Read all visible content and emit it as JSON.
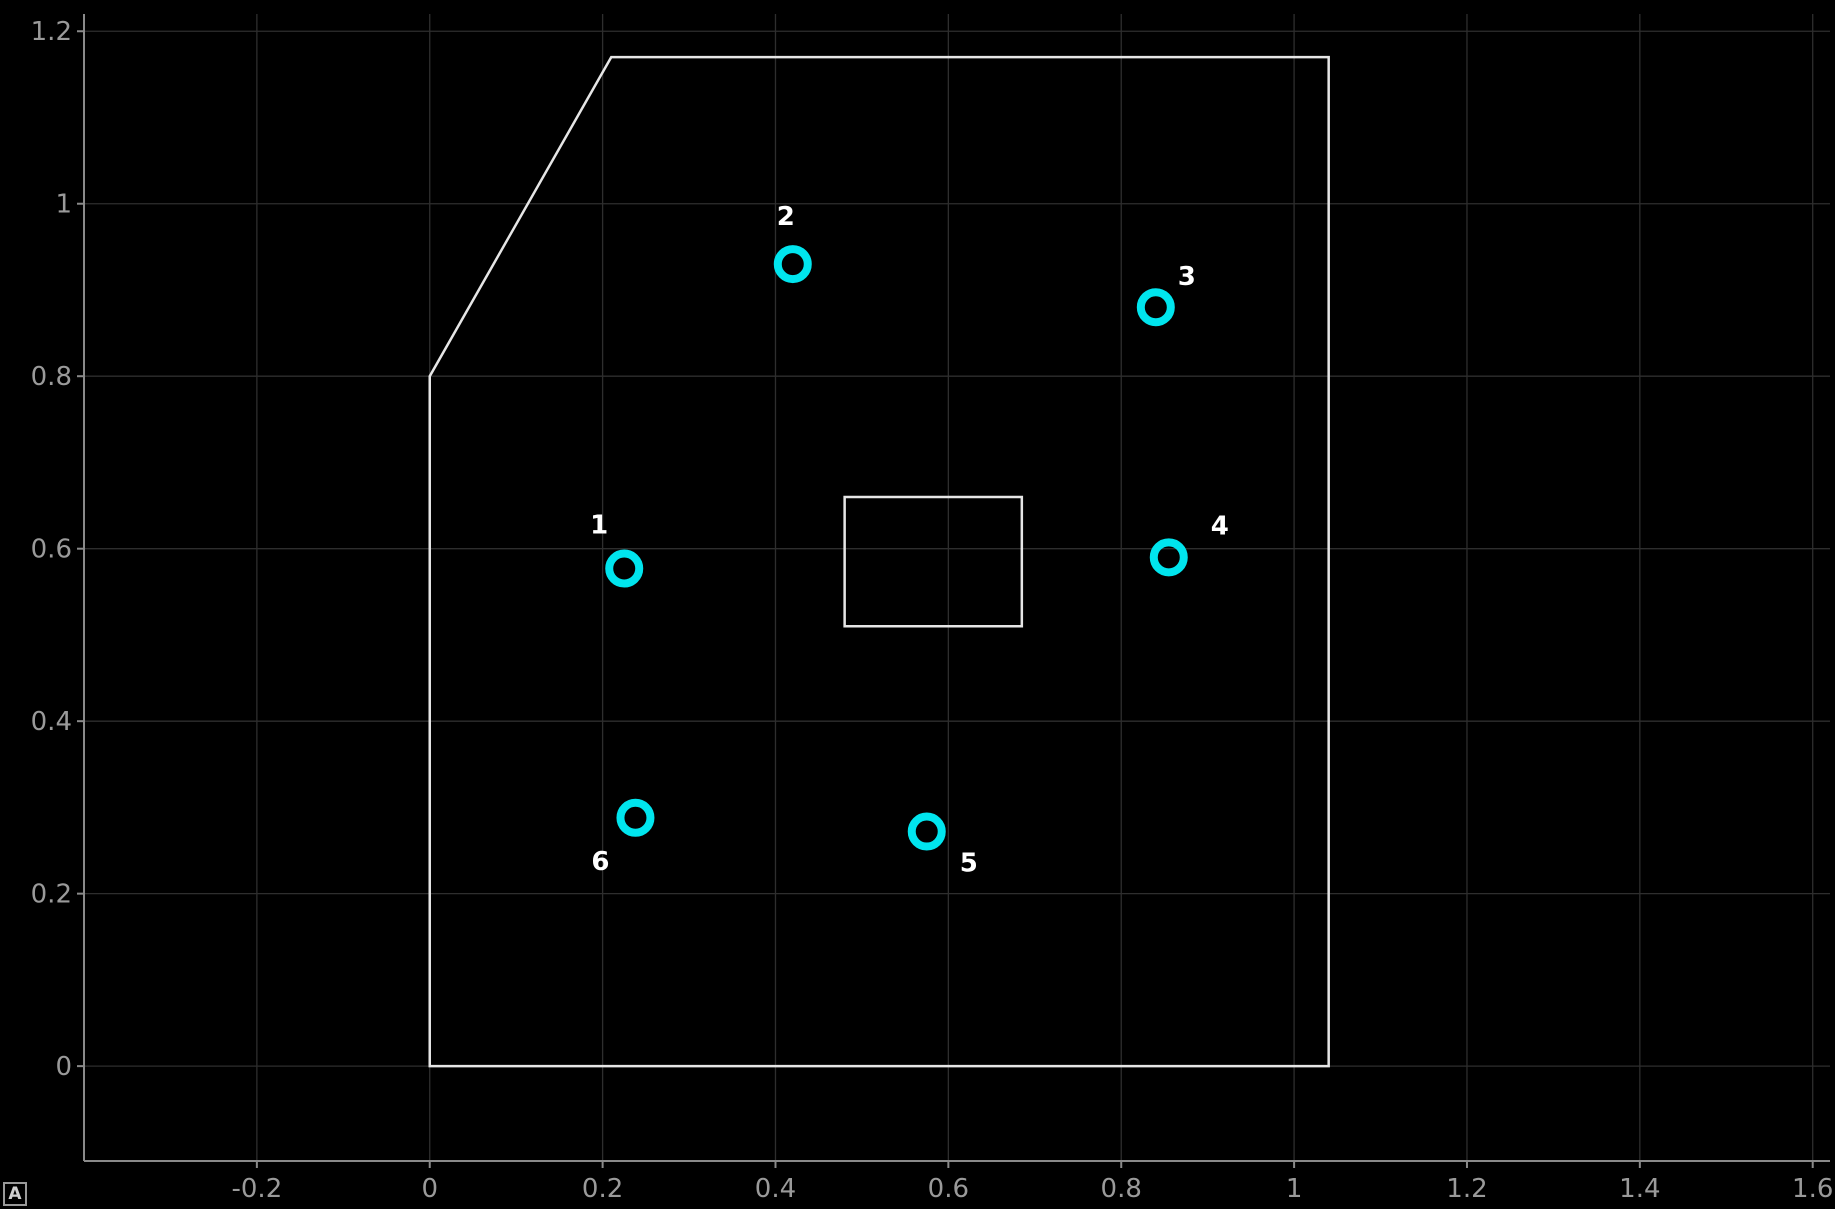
{
  "chart_data": {
    "type": "scatter",
    "title": "",
    "xlabel": "",
    "ylabel": "",
    "xlim": [
      -0.4,
      1.62
    ],
    "ylim": [
      -0.11,
      1.22
    ],
    "grid": true,
    "x_ticks": [
      -0.2,
      0,
      0.2,
      0.4,
      0.6,
      0.8,
      1,
      1.2,
      1.4,
      1.6
    ],
    "x_tick_labels": [
      "-0.2",
      "0",
      "0.2",
      "0.4",
      "0.6",
      "0.8",
      "1",
      "1.2",
      "1.4",
      "1.6"
    ],
    "y_ticks": [
      0,
      0.2,
      0.4,
      0.6,
      0.8,
      1,
      1.2
    ],
    "y_tick_labels": [
      "0",
      "0.2",
      "0.4",
      "0.6",
      "0.8",
      "1",
      "1.2"
    ],
    "points": [
      {
        "label": "1",
        "x": 0.225,
        "y": 0.577
      },
      {
        "label": "2",
        "x": 0.42,
        "y": 0.93
      },
      {
        "label": "3",
        "x": 0.84,
        "y": 0.88
      },
      {
        "label": "4",
        "x": 0.855,
        "y": 0.59
      },
      {
        "label": "5",
        "x": 0.575,
        "y": 0.272
      },
      {
        "label": "6",
        "x": 0.238,
        "y": 0.288
      }
    ],
    "outline_polygon": [
      [
        0,
        0
      ],
      [
        1.04,
        0
      ],
      [
        1.04,
        1.17
      ],
      [
        0.21,
        1.17
      ],
      [
        0,
        0.8
      ]
    ],
    "inner_rectangle": [
      [
        0.48,
        0.51
      ],
      [
        0.685,
        0.51
      ],
      [
        0.685,
        0.66
      ],
      [
        0.48,
        0.66
      ]
    ],
    "colors": {
      "background": "#000000",
      "marker": "#00e5ee",
      "outline": "#e6e6e6",
      "grid": "#2e2e2e",
      "tick_text": "#9a9a9a",
      "label_text": "#ffffff"
    }
  },
  "corner_badge": {
    "icon": "auto-scale-icon",
    "text": "A"
  }
}
